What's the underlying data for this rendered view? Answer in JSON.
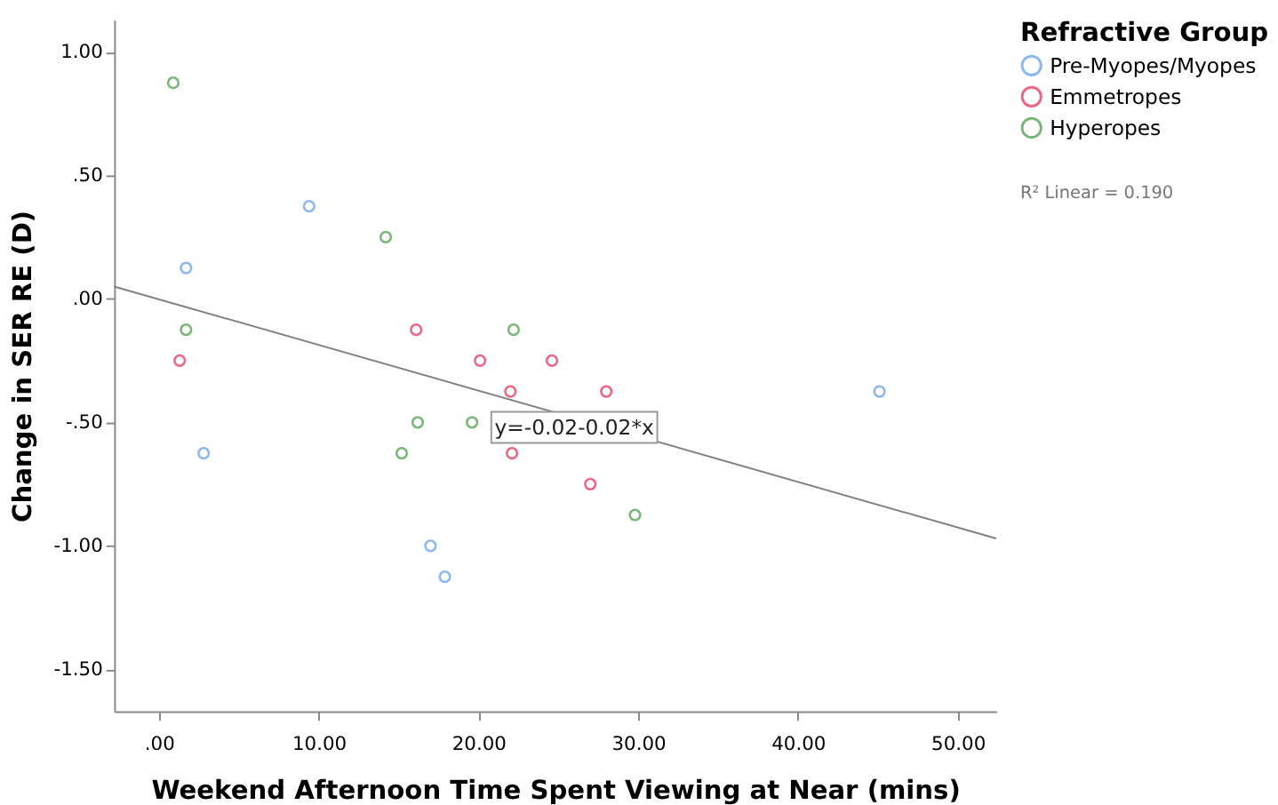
{
  "chart_data": {
    "type": "scatter",
    "xlabel": "Weekend Afternoon Time Spent Viewing at Near (mins)",
    "ylabel": "Change in SER RE (D)",
    "legend_title": "Refractive Group",
    "legend": "top right",
    "grid": false,
    "xlim": [
      -2.8,
      52.4
    ],
    "ylim": [
      -1.67,
      1.13
    ],
    "xticks": [
      {
        "value": 0,
        "label": ".00"
      },
      {
        "value": 10,
        "label": "10.00"
      },
      {
        "value": 20,
        "label": "20.00"
      },
      {
        "value": 30,
        "label": "30.00"
      },
      {
        "value": 40,
        "label": "40.00"
      },
      {
        "value": 50,
        "label": "50.00"
      }
    ],
    "yticks": [
      {
        "value": -1.5,
        "label": "-1.50"
      },
      {
        "value": -1,
        "label": "-1.00"
      },
      {
        "value": -0.5,
        "label": "-.50"
      },
      {
        "value": 0,
        "label": ".00"
      },
      {
        "value": 0.5,
        "label": ".50"
      },
      {
        "value": 1,
        "label": "1.00"
      }
    ],
    "series": [
      {
        "name": "Pre-Myopes/Myopes",
        "color": "#5b9bea",
        "x": [
          1.7,
          2.8,
          9.4,
          17.0,
          17.9,
          45.1
        ],
        "values": [
          0.125,
          -0.625,
          0.375,
          -1.0,
          -1.125,
          -0.375
        ],
        "marker": "circle"
      },
      {
        "name": "Emmetropes",
        "color": "#e0284f",
        "x": [
          1.3,
          16.1,
          20.1,
          22.0,
          22.1,
          24.6,
          27.0,
          28.0
        ],
        "values": [
          -0.25,
          -0.125,
          -0.25,
          -0.375,
          -0.625,
          -0.25,
          -0.75,
          -0.375
        ],
        "marker": "circle"
      },
      {
        "name": "Hyperopes",
        "color": "#3f9a3f",
        "x": [
          0.9,
          1.7,
          14.2,
          15.2,
          16.2,
          19.6,
          22.2,
          29.8
        ],
        "values": [
          0.875,
          -0.125,
          0.25,
          -0.625,
          -0.5,
          -0.5,
          -0.125,
          -0.875
        ],
        "marker": "circle"
      },
      {
        "type": "line",
        "color": "#808080",
        "x": [
          -2.8,
          52.4
        ],
        "values": [
          0.05,
          -0.97
        ],
        "line_style": "solid",
        "marker": "none"
      }
    ],
    "annotations": [
      {
        "text": "y=-0.02-0.02*x",
        "x": 26.0,
        "y": -0.52
      },
      "R² Linear = 0.190"
    ]
  }
}
